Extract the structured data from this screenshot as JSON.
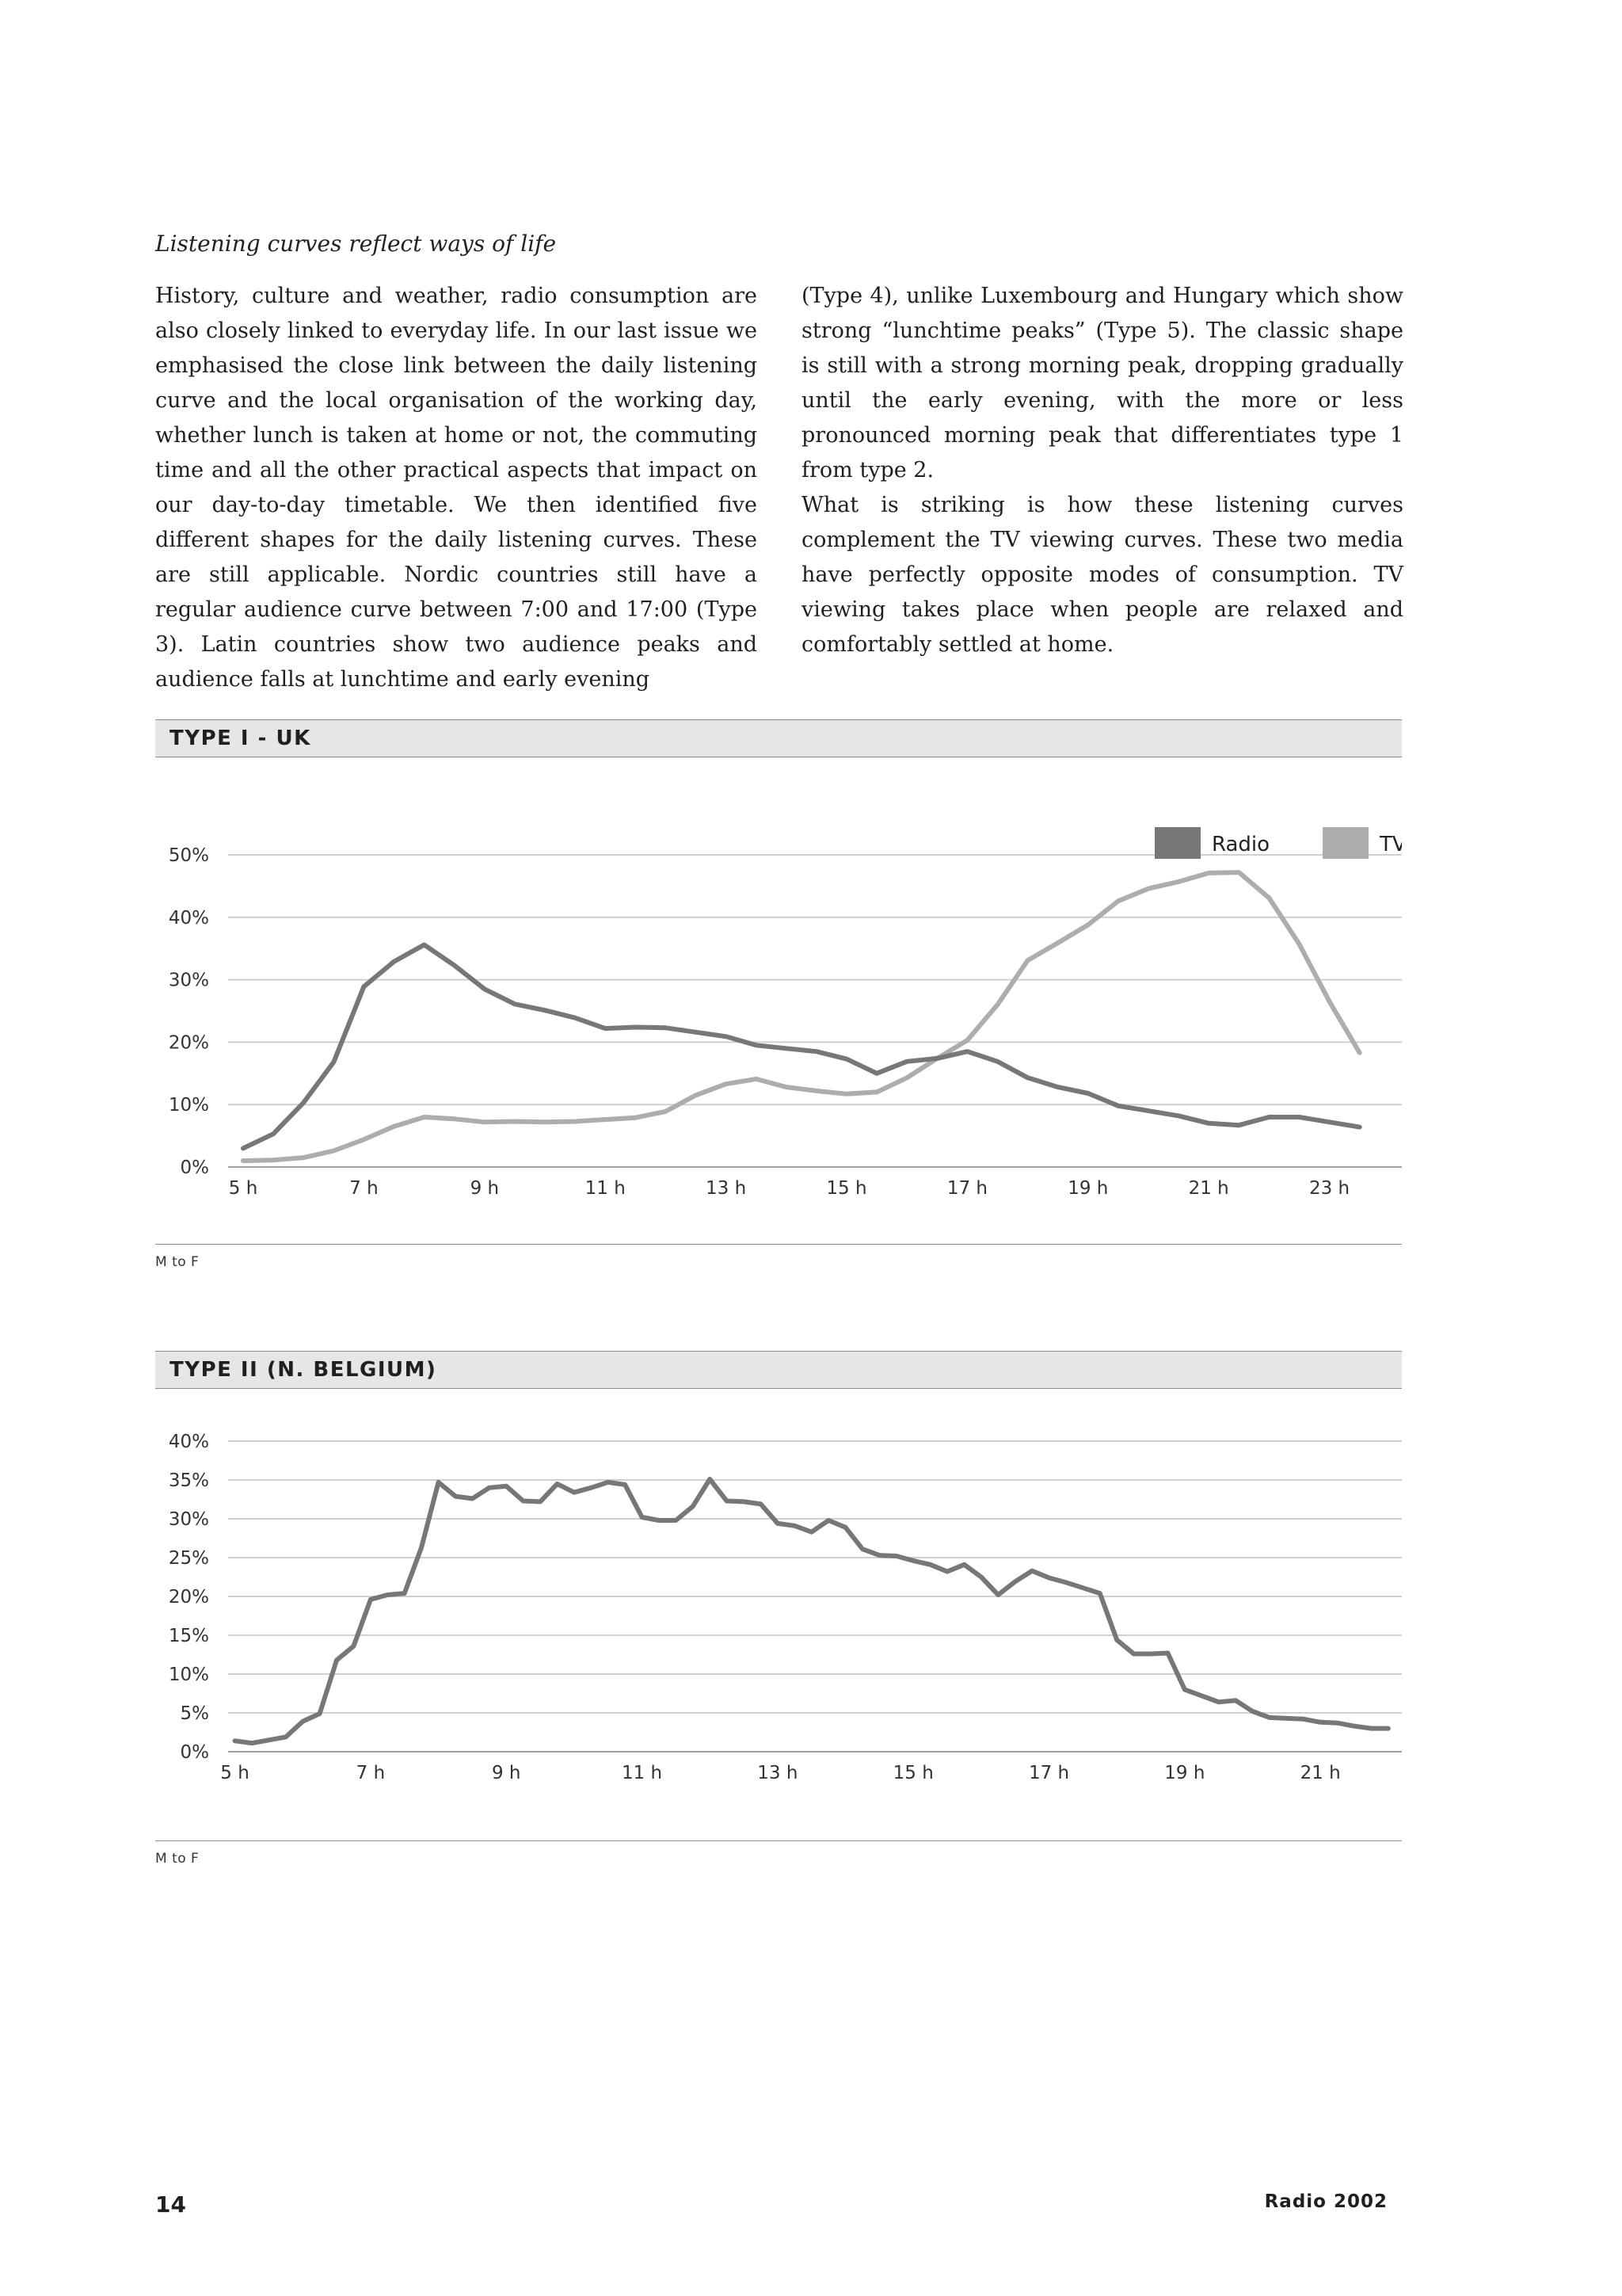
{
  "article": {
    "heading": "Listening curves reflect ways of life",
    "col_left": "History, culture and weather, radio consumption are also closely linked to everyday life. In our last issue we emphasised the close link between the daily listening curve and the local organisation of the working day, whether lunch is taken at home or not, the commuting time and all the other practical aspects that impact on our day-to-day timetable. We then identified five different shapes for the daily listening curves. These are still applicable. Nordic countries still have a regular audience curve between 7:00 and 17:00 (Type 3). Latin countries show two audience peaks and audience falls at lunchtime and early evening",
    "col_right_p1": "(Type 4), unlike Luxembourg and Hungary which show strong “lunchtime peaks” (Type 5). The classic shape is still with a strong morning peak, dropping gradually until the early evening, with the more or less pronounced morning peak that differentiates type 1 from type 2.",
    "col_right_p2": "What is striking is how these listening curves complement the TV viewing curves. These two media have perfectly opposite modes of consumption. TV viewing takes place when people are relaxed and comfortably settled at home."
  },
  "footer": {
    "page_number": "14",
    "publication": "Radio 2002"
  },
  "colors": {
    "radio": "#777777",
    "tv": "#adadad",
    "grid": "#d0d0d0",
    "axis": "#a0a0a0"
  },
  "chart_data": [
    {
      "type": "line",
      "title": "TYPE I - UK",
      "note": "M to F",
      "legend_position": "top-right",
      "x_ticks": [
        5,
        7,
        9,
        11,
        13,
        15,
        17,
        19,
        21,
        23
      ],
      "x_tick_labels": [
        "5 h",
        "7 h",
        "9 h",
        "11 h",
        "13 h",
        "15 h",
        "17 h",
        "19 h",
        "21 h",
        "23 h"
      ],
      "xlim": [
        4.75,
        24.2
      ],
      "y_ticks": [
        0,
        10,
        20,
        30,
        40,
        50
      ],
      "y_tick_labels": [
        "0%",
        "10%",
        "20%",
        "30%",
        "40%",
        "50%"
      ],
      "ylim": [
        0,
        50
      ],
      "grid": true,
      "series": [
        {
          "name": "Radio",
          "color": "#777777",
          "x": [
            5,
            5.5,
            6,
            6.5,
            7,
            7.5,
            8,
            8.5,
            9,
            9.5,
            10,
            10.5,
            11,
            11.5,
            12,
            12.5,
            13,
            13.5,
            14,
            14.5,
            15,
            15.5,
            16,
            16.5,
            17,
            17.5,
            18,
            18.5,
            19,
            19.5,
            20,
            20.5,
            21,
            21.5,
            22,
            22.5,
            23,
            23.5
          ],
          "values": [
            3,
            5.3,
            10.3,
            16.8,
            28.9,
            32.9,
            35.6,
            32.3,
            28.5,
            26.1,
            25.1,
            23.9,
            22.2,
            22.4,
            22.3,
            21.6,
            20.9,
            19.5,
            19,
            18.5,
            17.3,
            15,
            16.9,
            17.4,
            18.5,
            16.9,
            14.3,
            12.8,
            11.8,
            9.8,
            9,
            8.2,
            7,
            6.7,
            8,
            8,
            7.2,
            6.4
          ]
        },
        {
          "name": "TV",
          "color": "#adadad",
          "x": [
            5,
            5.5,
            6,
            6.5,
            7,
            7.5,
            8,
            8.5,
            9,
            9.5,
            10,
            10.5,
            11,
            11.5,
            12,
            12.5,
            13,
            13.5,
            14,
            14.5,
            15,
            15.5,
            16,
            16.5,
            17,
            17.5,
            18,
            18.5,
            19,
            19.5,
            20,
            20.5,
            21,
            21.5,
            22,
            22.5,
            23,
            23.5
          ],
          "values": [
            1,
            1.1,
            1.5,
            2.6,
            4.4,
            6.5,
            8,
            7.7,
            7.2,
            7.3,
            7.2,
            7.3,
            7.6,
            7.9,
            8.9,
            11.5,
            13.3,
            14.1,
            12.8,
            12.2,
            11.7,
            12,
            14.3,
            17.4,
            20.3,
            26,
            33.1,
            35.9,
            38.8,
            42.6,
            44.6,
            45.7,
            47.1,
            47.2,
            43.1,
            35.7,
            26.5,
            18.3
          ]
        }
      ]
    },
    {
      "type": "line",
      "title": "TYPE II (N. BELGIUM)",
      "note": "M to F",
      "x_ticks": [
        5,
        7,
        9,
        11,
        13,
        15,
        17,
        19,
        21
      ],
      "x_tick_labels": [
        "5 h",
        "7 h",
        "9 h",
        "11 h",
        "13 h",
        "15 h",
        "17 h",
        "19 h",
        "21 h"
      ],
      "xlim": [
        4.9,
        22.2
      ],
      "y_ticks": [
        0,
        5,
        10,
        15,
        20,
        25,
        30,
        35,
        40
      ],
      "y_tick_labels": [
        "0%",
        "5%",
        "10%",
        "15%",
        "20%",
        "25%",
        "30%",
        "35%",
        "40%"
      ],
      "ylim": [
        0,
        40
      ],
      "grid": true,
      "series": [
        {
          "color": "#777777",
          "x": [
            5,
            5.25,
            5.5,
            5.75,
            6,
            6.25,
            6.5,
            6.75,
            7,
            7.25,
            7.5,
            7.75,
            8,
            8.25,
            8.5,
            8.75,
            9,
            9.25,
            9.5,
            9.75,
            10,
            10.25,
            10.5,
            10.75,
            11,
            11.25,
            11.5,
            11.75,
            12,
            12.25,
            12.5,
            12.75,
            13,
            13.25,
            13.5,
            13.75,
            14,
            14.25,
            14.5,
            14.75,
            15,
            15.25,
            15.5,
            15.75,
            16,
            16.25,
            16.5,
            16.75,
            17,
            17.25,
            17.5,
            17.75,
            18,
            18.25,
            18.5,
            18.75,
            19,
            19.25,
            19.5,
            19.75,
            20,
            20.25,
            20.5,
            20.75,
            21,
            21.25,
            21.5,
            21.75,
            22
          ],
          "values": [
            1.4,
            1.1,
            1.5,
            1.9,
            3.9,
            4.9,
            11.8,
            13.6,
            19.6,
            20.2,
            20.4,
            26.3,
            34.7,
            32.9,
            32.6,
            34,
            34.2,
            32.3,
            32.2,
            34.5,
            33.4,
            34,
            34.7,
            34.4,
            30.2,
            29.8,
            29.8,
            31.6,
            35.1,
            32.3,
            32.2,
            31.9,
            29.4,
            29.1,
            28.3,
            29.8,
            28.9,
            26.1,
            25.3,
            25.2,
            24.6,
            24.1,
            23.2,
            24.1,
            22.5,
            20.2,
            21.9,
            23.3,
            22.4,
            21.8,
            21.1,
            20.4,
            14.4,
            12.6,
            12.6,
            12.7,
            8,
            7.2,
            6.4,
            6.6,
            5.2,
            4.4,
            4.3,
            4.2,
            3.8,
            3.7,
            3.3,
            3,
            3
          ]
        }
      ]
    }
  ]
}
